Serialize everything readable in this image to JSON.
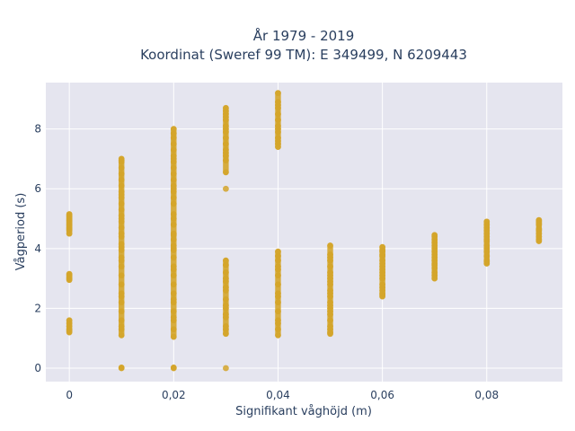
{
  "chart_data": {
    "type": "scatter",
    "title_line1": "År 1979 - 2019",
    "title_line2": "Koordinat (Sweref 99 TM): E 349499, N 6209443",
    "xlabel": "Signifikant våghöjd (m)",
    "ylabel": "Vågperiod (s)",
    "xlim": [
      -0.0045,
      0.0945
    ],
    "ylim": [
      -0.45,
      9.55
    ],
    "x_ticks": [
      0,
      0.02,
      0.04,
      0.06,
      0.08
    ],
    "x_tick_labels": [
      "0",
      "0,02",
      "0,04",
      "0,06",
      "0,08"
    ],
    "y_ticks": [
      0,
      2,
      4,
      6,
      8
    ],
    "y_tick_labels": [
      "0",
      "2",
      "4",
      "6",
      "8"
    ],
    "grid": true,
    "background_color": "#e5e5ef",
    "marker_color": "#d4a52a",
    "series": [
      {
        "x": [
          0,
          0,
          0,
          0,
          0,
          0,
          0,
          0,
          0,
          0,
          0,
          0,
          0,
          0,
          0,
          0,
          0,
          0,
          0,
          0,
          0,
          0,
          0,
          0,
          0.01,
          0.01,
          0.01,
          0.01,
          0.01,
          0.01,
          0.01,
          0.01,
          0.01,
          0.01,
          0.01,
          0.01,
          0.01,
          0.01,
          0.01,
          0.01,
          0.01,
          0.01,
          0.01,
          0.01,
          0.01,
          0.01,
          0.01,
          0.01,
          0.01,
          0.01,
          0.01,
          0.01,
          0.01,
          0.01,
          0.01,
          0.01,
          0.01,
          0.01,
          0.01,
          0.01,
          0.02,
          0.02,
          0.02,
          0.02,
          0.02,
          0.02,
          0.02,
          0.02,
          0.02,
          0.02,
          0.02,
          0.02,
          0.02,
          0.02,
          0.02,
          0.02,
          0.02,
          0.02,
          0.02,
          0.02,
          0.02,
          0.02,
          0.02,
          0.02,
          0.02,
          0.02,
          0.02,
          0.02,
          0.02,
          0.02,
          0.02,
          0.02,
          0.02,
          0.02,
          0.02,
          0.02,
          0.02,
          0.02,
          0.02,
          0.02,
          0.03,
          0.03,
          0.03,
          0.03,
          0.03,
          0.03,
          0.03,
          0.03,
          0.03,
          0.03,
          0.03,
          0.03,
          0.03,
          0.03,
          0.03,
          0.03,
          0.03,
          0.03,
          0.03,
          0.03,
          0.03,
          0.03,
          0.03,
          0.03,
          0.03,
          0.03,
          0.03,
          0.03,
          0.03,
          0.03,
          0.03,
          0.03,
          0.04,
          0.04,
          0.04,
          0.04,
          0.04,
          0.04,
          0.04,
          0.04,
          0.04,
          0.04,
          0.04,
          0.04,
          0.04,
          0.04,
          0.04,
          0.04,
          0.04,
          0.04,
          0.04,
          0.04,
          0.04,
          0.04,
          0.04,
          0.04,
          0.04,
          0.04,
          0.04,
          0.04,
          0.05,
          0.05,
          0.05,
          0.05,
          0.05,
          0.05,
          0.05,
          0.05,
          0.05,
          0.05,
          0.05,
          0.05,
          0.05,
          0.05,
          0.05,
          0.05,
          0.05,
          0.05,
          0.05,
          0.05,
          0.05,
          0.05,
          0.05,
          0.06,
          0.06,
          0.06,
          0.06,
          0.06,
          0.06,
          0.06,
          0.06,
          0.06,
          0.06,
          0.06,
          0.06,
          0.06,
          0.06,
          0.06,
          0.06,
          0.06,
          0.06,
          0.07,
          0.07,
          0.07,
          0.07,
          0.07,
          0.07,
          0.07,
          0.07,
          0.07,
          0.07,
          0.07,
          0.07,
          0.07,
          0.07,
          0.07,
          0.07,
          0.08,
          0.08,
          0.08,
          0.08,
          0.08,
          0.08,
          0.08,
          0.08,
          0.08,
          0.08,
          0.08,
          0.08,
          0.08,
          0.08,
          0.08,
          0.09,
          0.09,
          0.09,
          0.09,
          0.09,
          0.09,
          0.09,
          0.09,
          0.09,
          0.09
        ],
        "y": [
          1.2,
          1.25,
          1.3,
          1.4,
          1.5,
          1.6,
          2.95,
          3.0,
          3.05,
          3.1,
          3.15,
          4.5,
          4.6,
          4.65,
          4.7,
          4.75,
          4.8,
          4.85,
          4.9,
          4.95,
          5.0,
          5.05,
          5.1,
          5.15,
          0,
          0.02,
          1.1,
          1.3,
          1.6,
          1.9,
          2.2,
          2.5,
          2.8,
          3.1,
          3.4,
          3.7,
          3.95,
          4.05,
          4.15,
          4.4,
          4.5,
          4.7,
          4.9,
          5.1,
          5.3,
          5.5,
          5.7,
          5.9,
          6.1,
          6.3,
          6.5,
          6.7,
          6.9,
          7.0,
          6.95,
          5.8,
          5.0,
          3.6,
          2.4,
          1.4,
          0,
          0.02,
          1.05,
          1.3,
          1.6,
          1.9,
          2.2,
          2.5,
          2.8,
          3.1,
          3.4,
          3.7,
          3.95,
          4.0,
          4.1,
          4.3,
          4.5,
          4.8,
          5.15,
          5.5,
          5.7,
          5.9,
          6.1,
          6.3,
          6.5,
          6.7,
          6.9,
          7.1,
          7.3,
          7.5,
          7.7,
          7.85,
          8.0,
          3.3,
          2.3,
          1.7,
          4.45,
          6.0,
          7.0,
          5.0,
          0,
          1.15,
          1.4,
          1.7,
          2.0,
          2.3,
          2.6,
          2.9,
          3.2,
          3.45,
          3.6,
          6.0,
          6.55,
          6.95,
          7.1,
          7.3,
          7.5,
          7.7,
          7.9,
          8.1,
          8.3,
          8.5,
          8.6,
          8.7,
          1.3,
          2.1,
          2.7,
          3.0,
          7.2,
          8.0,
          8.4,
          1.8,
          1.1,
          1.3,
          1.6,
          1.9,
          2.2,
          2.5,
          2.8,
          3.1,
          3.4,
          3.6,
          3.75,
          3.9,
          7.4,
          7.5,
          7.6,
          7.7,
          7.9,
          8.1,
          8.3,
          8.5,
          8.7,
          8.9,
          9.2,
          1.5,
          2.4,
          3.3,
          8.0,
          8.8,
          1.15,
          1.2,
          1.4,
          1.6,
          1.8,
          2.0,
          2.2,
          2.4,
          2.6,
          2.8,
          3.0,
          3.2,
          3.4,
          3.6,
          3.8,
          4.1,
          1.3,
          1.9,
          2.5,
          3.1,
          3.7,
          2.1,
          2.9,
          2.4,
          2.5,
          2.6,
          2.8,
          3.0,
          3.2,
          3.4,
          3.6,
          3.8,
          3.95,
          4.05,
          2.7,
          3.3,
          3.9,
          2.45,
          3.1,
          3.5,
          3.75,
          3.0,
          3.1,
          3.2,
          3.35,
          3.5,
          3.6,
          3.7,
          3.8,
          3.9,
          4.0,
          4.1,
          4.2,
          4.3,
          4.4,
          4.45,
          3.45,
          3.5,
          3.6,
          3.75,
          3.9,
          4.0,
          4.1,
          4.25,
          4.4,
          4.5,
          4.6,
          4.7,
          4.8,
          4.9,
          3.55,
          4.3,
          4.25,
          4.3,
          4.4,
          4.5,
          4.6,
          4.65,
          4.8,
          4.85,
          4.9,
          4.95
        ]
      }
    ]
  }
}
